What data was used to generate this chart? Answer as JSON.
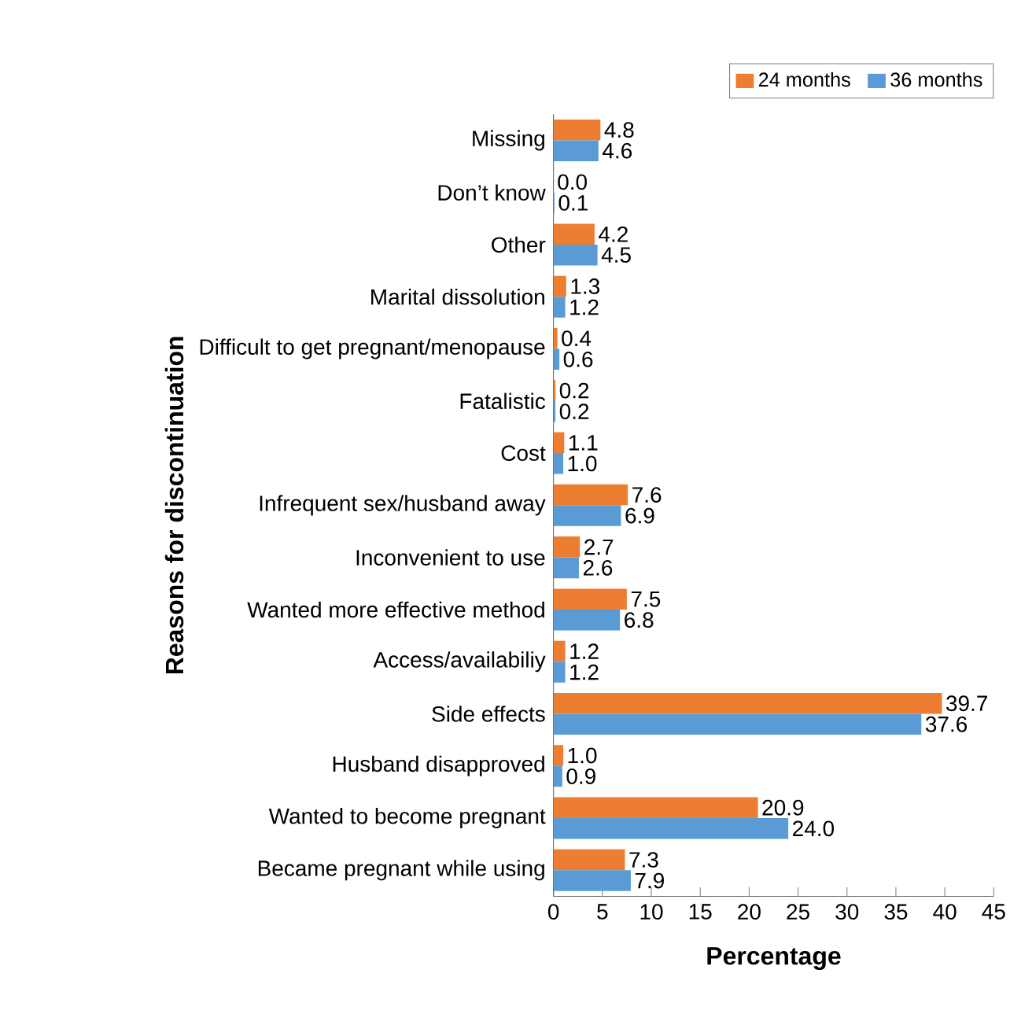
{
  "chart_data": {
    "type": "bar",
    "orientation": "horizontal",
    "xlabel": "Percentage",
    "ylabel": "Reasons for discontinuation",
    "categories": [
      "Missing",
      "Don’t know",
      "Other",
      "Marital dissolution",
      "Difficult to get pregnant/menopause",
      "Fatalistic",
      "Cost",
      "Infrequent sex/husband away",
      "Inconvenient to use",
      "Wanted more effective method",
      "Access/availabiliy",
      "Side effects",
      "Husband disapproved",
      "Wanted to become pregnant",
      "Became pregnant while using"
    ],
    "series": [
      {
        "name": "24 months",
        "color": "#ed7d31",
        "values": [
          4.8,
          0.0,
          4.2,
          1.3,
          0.4,
          0.2,
          1.1,
          7.6,
          2.7,
          7.5,
          1.2,
          39.7,
          1.0,
          20.9,
          7.3
        ],
        "value_labels": [
          "4.8",
          "0.0",
          "4.2",
          "1.3",
          "0.4",
          "0.2",
          "1.1",
          "7.6",
          "2.7",
          "7.5",
          "1.2",
          "39.7",
          "1.0",
          "20.9",
          "7.3"
        ]
      },
      {
        "name": "36 months",
        "color": "#5b9bd5",
        "values": [
          4.6,
          0.1,
          4.5,
          1.2,
          0.6,
          0.2,
          1.0,
          6.9,
          2.6,
          6.8,
          1.2,
          37.6,
          0.9,
          24.0,
          7.9
        ],
        "value_labels": [
          "4.6",
          "0.1",
          "4.5",
          "1.2",
          "0.6",
          "0.2",
          "1.0",
          "6.9",
          "2.6",
          "6.8",
          "1.2",
          "37.6",
          "0.9",
          "24.0",
          "7.9"
        ]
      }
    ],
    "xlim": [
      0,
      45
    ],
    "xticks": [
      0,
      5,
      10,
      15,
      20,
      25,
      30,
      35,
      40,
      45
    ],
    "legend": "top right"
  }
}
